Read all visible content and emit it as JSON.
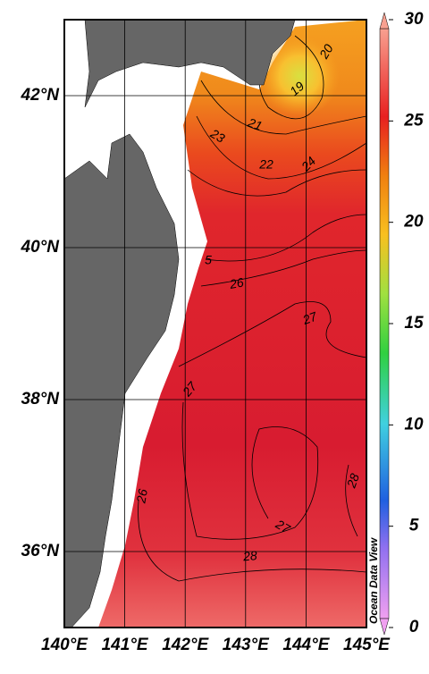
{
  "map": {
    "lon_ticks": [
      {
        "value": 140,
        "label": "140°E"
      },
      {
        "value": 141,
        "label": "141°E"
      },
      {
        "value": 142,
        "label": "142°E"
      },
      {
        "value": 143,
        "label": "143°E"
      },
      {
        "value": 144,
        "label": "144°E"
      },
      {
        "value": 145,
        "label": "145°E"
      }
    ],
    "lat_ticks": [
      {
        "value": 36,
        "label": "36°N"
      },
      {
        "value": 38,
        "label": "38°N"
      },
      {
        "value": 40,
        "label": "40°N"
      },
      {
        "value": 42,
        "label": "42°N"
      }
    ],
    "lonlim": [
      140,
      145
    ],
    "latlim": [
      35,
      43
    ],
    "colorbar": {
      "lim": [
        0,
        30
      ],
      "ticks": [
        0,
        5,
        10,
        15,
        20,
        25,
        30
      ]
    },
    "contour_labels": [
      20,
      19,
      21,
      23,
      22,
      24,
      5,
      26,
      27,
      27,
      26,
      27,
      28,
      28
    ],
    "watermark": "Ocean Data View"
  }
}
